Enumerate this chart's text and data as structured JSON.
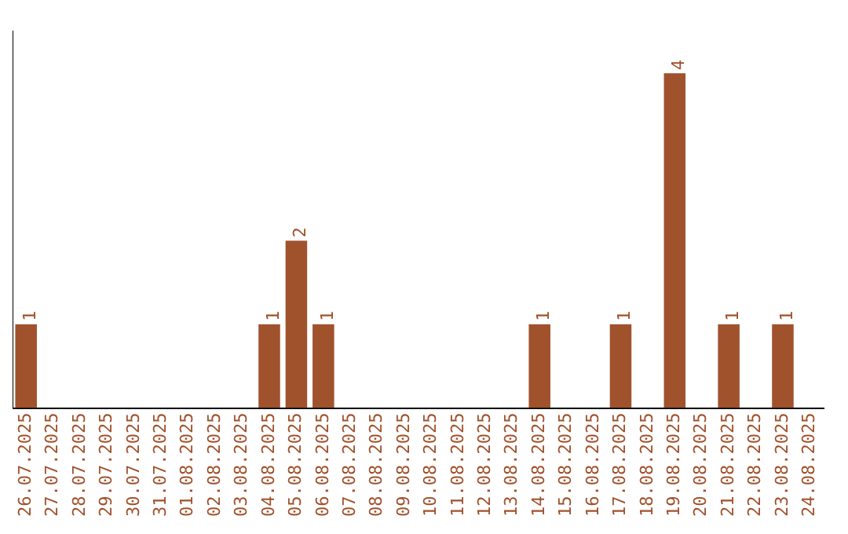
{
  "chart_data": {
    "type": "bar",
    "categories": [
      "26.07.2025",
      "27.07.2025",
      "28.07.2025",
      "29.07.2025",
      "30.07.2025",
      "31.07.2025",
      "01.08.2025",
      "02.08.2025",
      "03.08.2025",
      "04.08.2025",
      "05.08.2025",
      "06.08.2025",
      "07.08.2025",
      "08.08.2025",
      "09.08.2025",
      "10.08.2025",
      "11.08.2025",
      "12.08.2025",
      "13.08.2025",
      "14.08.2025",
      "15.08.2025",
      "16.08.2025",
      "17.08.2025",
      "18.08.2025",
      "19.08.2025",
      "20.08.2025",
      "21.08.2025",
      "22.08.2025",
      "23.08.2025",
      "24.08.2025"
    ],
    "values": [
      1,
      0,
      0,
      0,
      0,
      0,
      0,
      0,
      0,
      1,
      2,
      1,
      0,
      0,
      0,
      0,
      0,
      0,
      0,
      1,
      0,
      0,
      1,
      0,
      4,
      0,
      1,
      0,
      1,
      0
    ],
    "value_labels": [
      "1",
      null,
      null,
      null,
      null,
      null,
      null,
      null,
      null,
      "1",
      "2",
      "1",
      null,
      null,
      null,
      null,
      null,
      null,
      null,
      "1",
      null,
      null,
      "1",
      null,
      "4",
      null,
      "1",
      null,
      "1",
      null
    ],
    "color": "#a0522d",
    "grid": false,
    "tick_labels": "x"
  }
}
